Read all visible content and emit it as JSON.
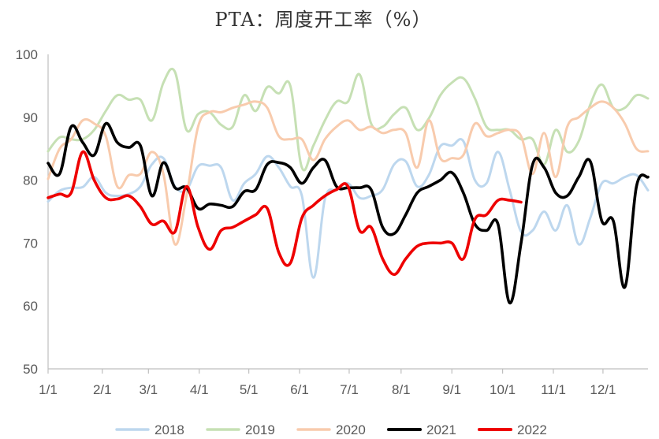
{
  "chart_data": {
    "type": "line",
    "title": "PTA：周度开工率（%）",
    "xlabel": "",
    "ylabel": "",
    "ylim": [
      50,
      100
    ],
    "yticks": [
      50,
      60,
      70,
      80,
      90,
      100
    ],
    "x_unit": "week",
    "xlim": [
      1,
      53
    ],
    "xticks": [
      {
        "label": "1/1",
        "week": 1
      },
      {
        "label": "2/1",
        "week": 5.7
      },
      {
        "label": "3/1",
        "week": 9.7
      },
      {
        "label": "4/1",
        "week": 14.1
      },
      {
        "label": "5/1",
        "week": 18.4
      },
      {
        "label": "6/1",
        "week": 22.8
      },
      {
        "label": "7/1",
        "week": 27.1
      },
      {
        "label": "8/1",
        "week": 31.6
      },
      {
        "label": "9/1",
        "week": 36.0
      },
      {
        "label": "10/1",
        "week": 40.4
      },
      {
        "label": "11/1",
        "week": 44.8
      },
      {
        "label": "12/1",
        "week": 49.1
      }
    ],
    "grid": false,
    "legend": "bottom",
    "series": [
      {
        "name": "2018",
        "color": "#bdd7ee",
        "x": [
          1,
          2,
          3,
          4,
          5,
          6,
          7,
          8,
          9,
          10,
          11,
          12,
          13,
          14,
          15,
          16,
          17,
          18,
          19,
          20,
          21,
          22,
          23,
          24,
          25,
          26,
          27,
          28,
          29,
          30,
          31,
          32,
          33,
          34,
          35,
          36,
          37,
          38,
          39,
          40,
          41,
          42,
          43,
          44,
          45,
          46,
          47,
          48,
          49,
          50,
          51,
          52,
          53
        ],
        "values": [
          76.6,
          78.3,
          78.8,
          78.9,
          80.5,
          78.0,
          77.5,
          77.8,
          79.0,
          82.5,
          83.5,
          79.0,
          78.5,
          82.2,
          82.3,
          82.0,
          76.8,
          79.5,
          81.0,
          83.8,
          82.0,
          79.0,
          77.5,
          64.5,
          77.0,
          78.5,
          79.5,
          77.2,
          77.5,
          78.5,
          82.5,
          83.0,
          79.0,
          80.8,
          85.4,
          85.5,
          86.2,
          80.0,
          79.5,
          84.5,
          78.5,
          71.8,
          72.0,
          75.0,
          72.0,
          76.0,
          69.8,
          74.0,
          79.5,
          79.5,
          80.5,
          80.8,
          78.4
        ]
      },
      {
        "name": "2019",
        "color": "#c6e0b4",
        "x": [
          1,
          2,
          3,
          4,
          5,
          6,
          7,
          8,
          9,
          10,
          11,
          12,
          13,
          14,
          15,
          16,
          17,
          18,
          19,
          20,
          21,
          22,
          23,
          24,
          25,
          26,
          27,
          28,
          29,
          30,
          31,
          32,
          33,
          34,
          35,
          36,
          37,
          38,
          39,
          40,
          41,
          42,
          43,
          44,
          45,
          46,
          47,
          48,
          49,
          50,
          51,
          52,
          53
        ],
        "values": [
          84.6,
          86.8,
          86.5,
          86.5,
          88.0,
          91.0,
          93.5,
          92.8,
          92.8,
          89.5,
          95.5,
          97.2,
          88.0,
          90.5,
          90.8,
          88.8,
          88.5,
          93.5,
          91.0,
          94.8,
          93.8,
          95.0,
          82.0,
          85.5,
          89.5,
          92.5,
          92.5,
          96.8,
          89.0,
          88.5,
          90.5,
          91.5,
          88.0,
          89.8,
          93.5,
          95.5,
          96.2,
          93.0,
          88.5,
          88.0,
          88.0,
          86.5,
          86.5,
          82.5,
          88.0,
          84.5,
          86.2,
          92.0,
          95.2,
          91.5,
          91.5,
          93.5,
          93.0
        ]
      },
      {
        "name": "2020",
        "color": "#f8cbad",
        "x": [
          1,
          2,
          3,
          4,
          5,
          6,
          7,
          8,
          9,
          10,
          11,
          12,
          13,
          14,
          15,
          16,
          17,
          18,
          19,
          20,
          21,
          22,
          23,
          24,
          25,
          26,
          27,
          28,
          29,
          30,
          31,
          32,
          33,
          34,
          35,
          36,
          37,
          38,
          39,
          40,
          41,
          42,
          43,
          44,
          45,
          46,
          47,
          48,
          49,
          50,
          51,
          52,
          53
        ],
        "values": [
          80.2,
          85.0,
          86.5,
          89.5,
          89.0,
          87.0,
          79.0,
          80.8,
          81.0,
          84.5,
          81.0,
          69.8,
          77.5,
          88.5,
          90.8,
          90.8,
          91.5,
          92.0,
          92.5,
          91.5,
          87.0,
          86.5,
          86.5,
          83.2,
          86.5,
          88.5,
          89.5,
          88.0,
          88.5,
          87.5,
          88.0,
          87.5,
          82.0,
          89.5,
          83.5,
          83.5,
          84.0,
          89.0,
          87.0,
          87.5,
          88.0,
          87.0,
          81.0,
          87.5,
          80.5,
          88.5,
          90.0,
          91.5,
          92.5,
          91.5,
          89.0,
          85.0,
          84.6
        ]
      },
      {
        "name": "2021",
        "color": "#000000",
        "x": [
          1,
          2,
          3,
          4,
          5,
          6,
          7,
          8,
          9,
          10,
          11,
          12,
          13,
          14,
          15,
          16,
          17,
          18,
          19,
          20,
          21,
          22,
          23,
          24,
          25,
          26,
          27,
          28,
          29,
          30,
          31,
          32,
          33,
          34,
          35,
          36,
          37,
          38,
          39,
          40,
          41,
          42,
          43,
          44,
          45,
          46,
          47,
          48,
          49,
          50,
          51,
          52,
          53
        ],
        "values": [
          82.7,
          81.0,
          88.5,
          86.0,
          84.0,
          89.0,
          86.0,
          85.2,
          85.5,
          77.5,
          82.8,
          78.8,
          78.8,
          75.5,
          76.2,
          76.0,
          75.8,
          78.2,
          78.5,
          82.5,
          82.8,
          82.0,
          79.5,
          82.0,
          83.2,
          79.0,
          78.8,
          78.8,
          78.5,
          72.5,
          71.5,
          74.5,
          78.0,
          79.0,
          80.0,
          81.2,
          78.0,
          73.0,
          72.0,
          73.0,
          60.5,
          70.0,
          82.5,
          82.0,
          78.0,
          77.5,
          80.5,
          83.0,
          73.5,
          73.5,
          63.0,
          79.0,
          80.5
        ]
      },
      {
        "name": "2022",
        "color": "#ee0000",
        "x": [
          1,
          2,
          3,
          4,
          5,
          6,
          7,
          8,
          9,
          10,
          11,
          12,
          13,
          14,
          15,
          16,
          17,
          18,
          19,
          20,
          21,
          22,
          23,
          24,
          25,
          26,
          27,
          28,
          29,
          30,
          31,
          32,
          33,
          34,
          35,
          36,
          37,
          38,
          39,
          40,
          41,
          42
        ],
        "values": [
          77.2,
          77.8,
          78.0,
          84.5,
          80.0,
          77.2,
          77.0,
          77.5,
          75.8,
          73.0,
          73.5,
          71.8,
          79.0,
          72.5,
          69.0,
          72.0,
          72.5,
          73.5,
          74.5,
          75.5,
          68.5,
          66.8,
          74.0,
          76.0,
          77.5,
          78.5,
          79.0,
          72.0,
          72.5,
          67.5,
          65.0,
          67.5,
          69.5,
          70.0,
          70.0,
          70.0,
          67.5,
          73.8,
          74.5,
          76.8,
          76.8,
          76.5
        ]
      }
    ]
  }
}
